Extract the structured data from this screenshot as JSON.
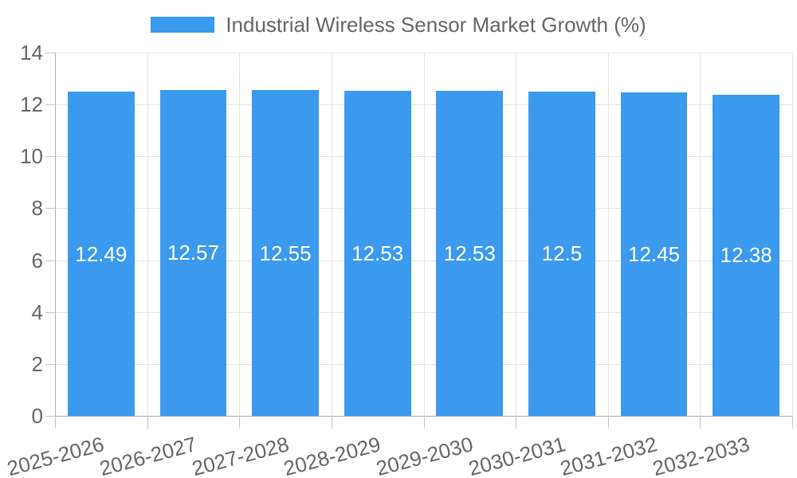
{
  "legend": {
    "label": "Industrial Wireless Sensor Market Growth (%)"
  },
  "chart_data": {
    "type": "bar",
    "title": "Industrial Wireless Sensor Market Growth (%)",
    "categories": [
      "2025-2026",
      "2026-2027",
      "2027-2028",
      "2028-2029",
      "2029-2030",
      "2030-2031",
      "2031-2032",
      "2032-2033"
    ],
    "values": [
      12.49,
      12.57,
      12.55,
      12.53,
      12.53,
      12.5,
      12.45,
      12.38
    ],
    "value_labels": [
      "12.49",
      "12.57",
      "12.55",
      "12.53",
      "12.53",
      "12.5",
      "12.45",
      "12.38"
    ],
    "xlabel": "",
    "ylabel": "",
    "ylim": [
      0,
      14
    ],
    "ytick_step": 2,
    "ytick_labels": [
      "0",
      "2",
      "4",
      "6",
      "8",
      "10",
      "12",
      "14"
    ],
    "grid": true,
    "legend_position": "top",
    "bar_color": "#3b99ee",
    "grid_color": "#e3e3e3",
    "axis_color": "#afafaf",
    "tick_color": "#c6c6c6",
    "text_color": "#666666",
    "value_label_color": "#ffffff"
  }
}
